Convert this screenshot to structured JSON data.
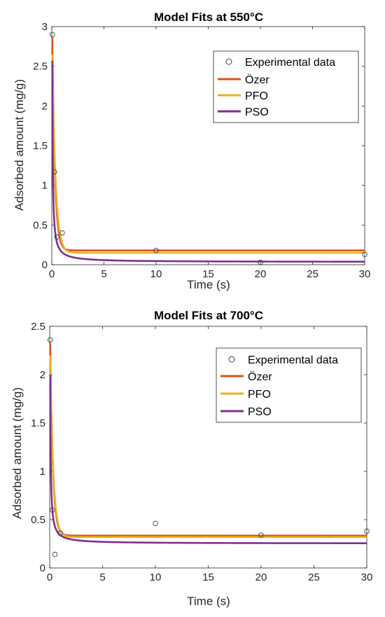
{
  "colors": {
    "ozer": "#D95319",
    "pfo": "#EDB120",
    "pso": "#7E2F8E",
    "markers": "#404040",
    "axes": "#262626"
  },
  "chart_data": [
    {
      "type": "line",
      "title": "Model Fits at 550°C",
      "xlabel": "Time (s)",
      "ylabel": "Adsorbed amount (mg/g)",
      "xlim": [
        0,
        30
      ],
      "ylim": [
        0,
        3
      ],
      "xticks": [
        0,
        5,
        10,
        15,
        20,
        25,
        30
      ],
      "yticks": [
        0,
        0.5,
        1,
        1.5,
        2,
        2.5,
        3
      ],
      "xtick_labels": [
        "0",
        "5",
        "10",
        "15",
        "20",
        "25",
        "30"
      ],
      "ytick_labels": [
        "0",
        "0.5",
        "1",
        "1.5",
        "2",
        "2.5",
        "3"
      ],
      "grid": false,
      "legend_position": "top-right",
      "legend": [
        "Experimental data",
        "Özer",
        "PFO",
        "PSO"
      ],
      "experimental": {
        "x": [
          0.05,
          0.25,
          0.5,
          1,
          10,
          20,
          30
        ],
        "y": [
          2.9,
          1.17,
          0.35,
          0.4,
          0.18,
          0.03,
          0.13
        ]
      },
      "models": {
        "ozer": {
          "x0": 0.05,
          "y0": 2.87,
          "ye": 0.18,
          "k": 4.0
        },
        "pfo": {
          "x0": 0.05,
          "y0": 2.65,
          "ye": 0.15,
          "k": 3.2
        },
        "pso": {
          "x0": 0.05,
          "y0": 2.57,
          "ye": 0.034,
          "k": 21.0
        }
      }
    },
    {
      "type": "line",
      "title": "Model Fits at 700°C",
      "xlabel": "Time (s)",
      "ylabel": "Adsorbed amount (mg/g)",
      "xlim": [
        0,
        30
      ],
      "ylim": [
        0,
        2.5
      ],
      "xticks": [
        0,
        5,
        10,
        15,
        20,
        25,
        30
      ],
      "yticks": [
        0,
        0.5,
        1,
        1.5,
        2,
        2.5
      ],
      "xtick_labels": [
        "0",
        "5",
        "10",
        "15",
        "20",
        "25",
        "30"
      ],
      "ytick_labels": [
        "0",
        "0.5",
        "1",
        "1.5",
        "2",
        "2.5"
      ],
      "grid": false,
      "legend_position": "top-right",
      "legend": [
        "Experimental data",
        "Özer",
        "PFO",
        "PSO"
      ],
      "experimental": {
        "x": [
          0.05,
          0.25,
          0.5,
          1,
          10,
          20,
          30
        ],
        "y": [
          2.36,
          0.6,
          0.14,
          0.36,
          0.46,
          0.34,
          0.38
        ]
      },
      "models": {
        "ozer": {
          "x0": 0.05,
          "y0": 2.33,
          "ye": 0.335,
          "k": 4.0
        },
        "pfo": {
          "x0": 0.05,
          "y0": 2.2,
          "ye": 0.32,
          "k": 3.5
        },
        "pso": {
          "x0": 0.05,
          "y0": 2.0,
          "ye": 0.253,
          "k": 20.0
        }
      }
    }
  ]
}
